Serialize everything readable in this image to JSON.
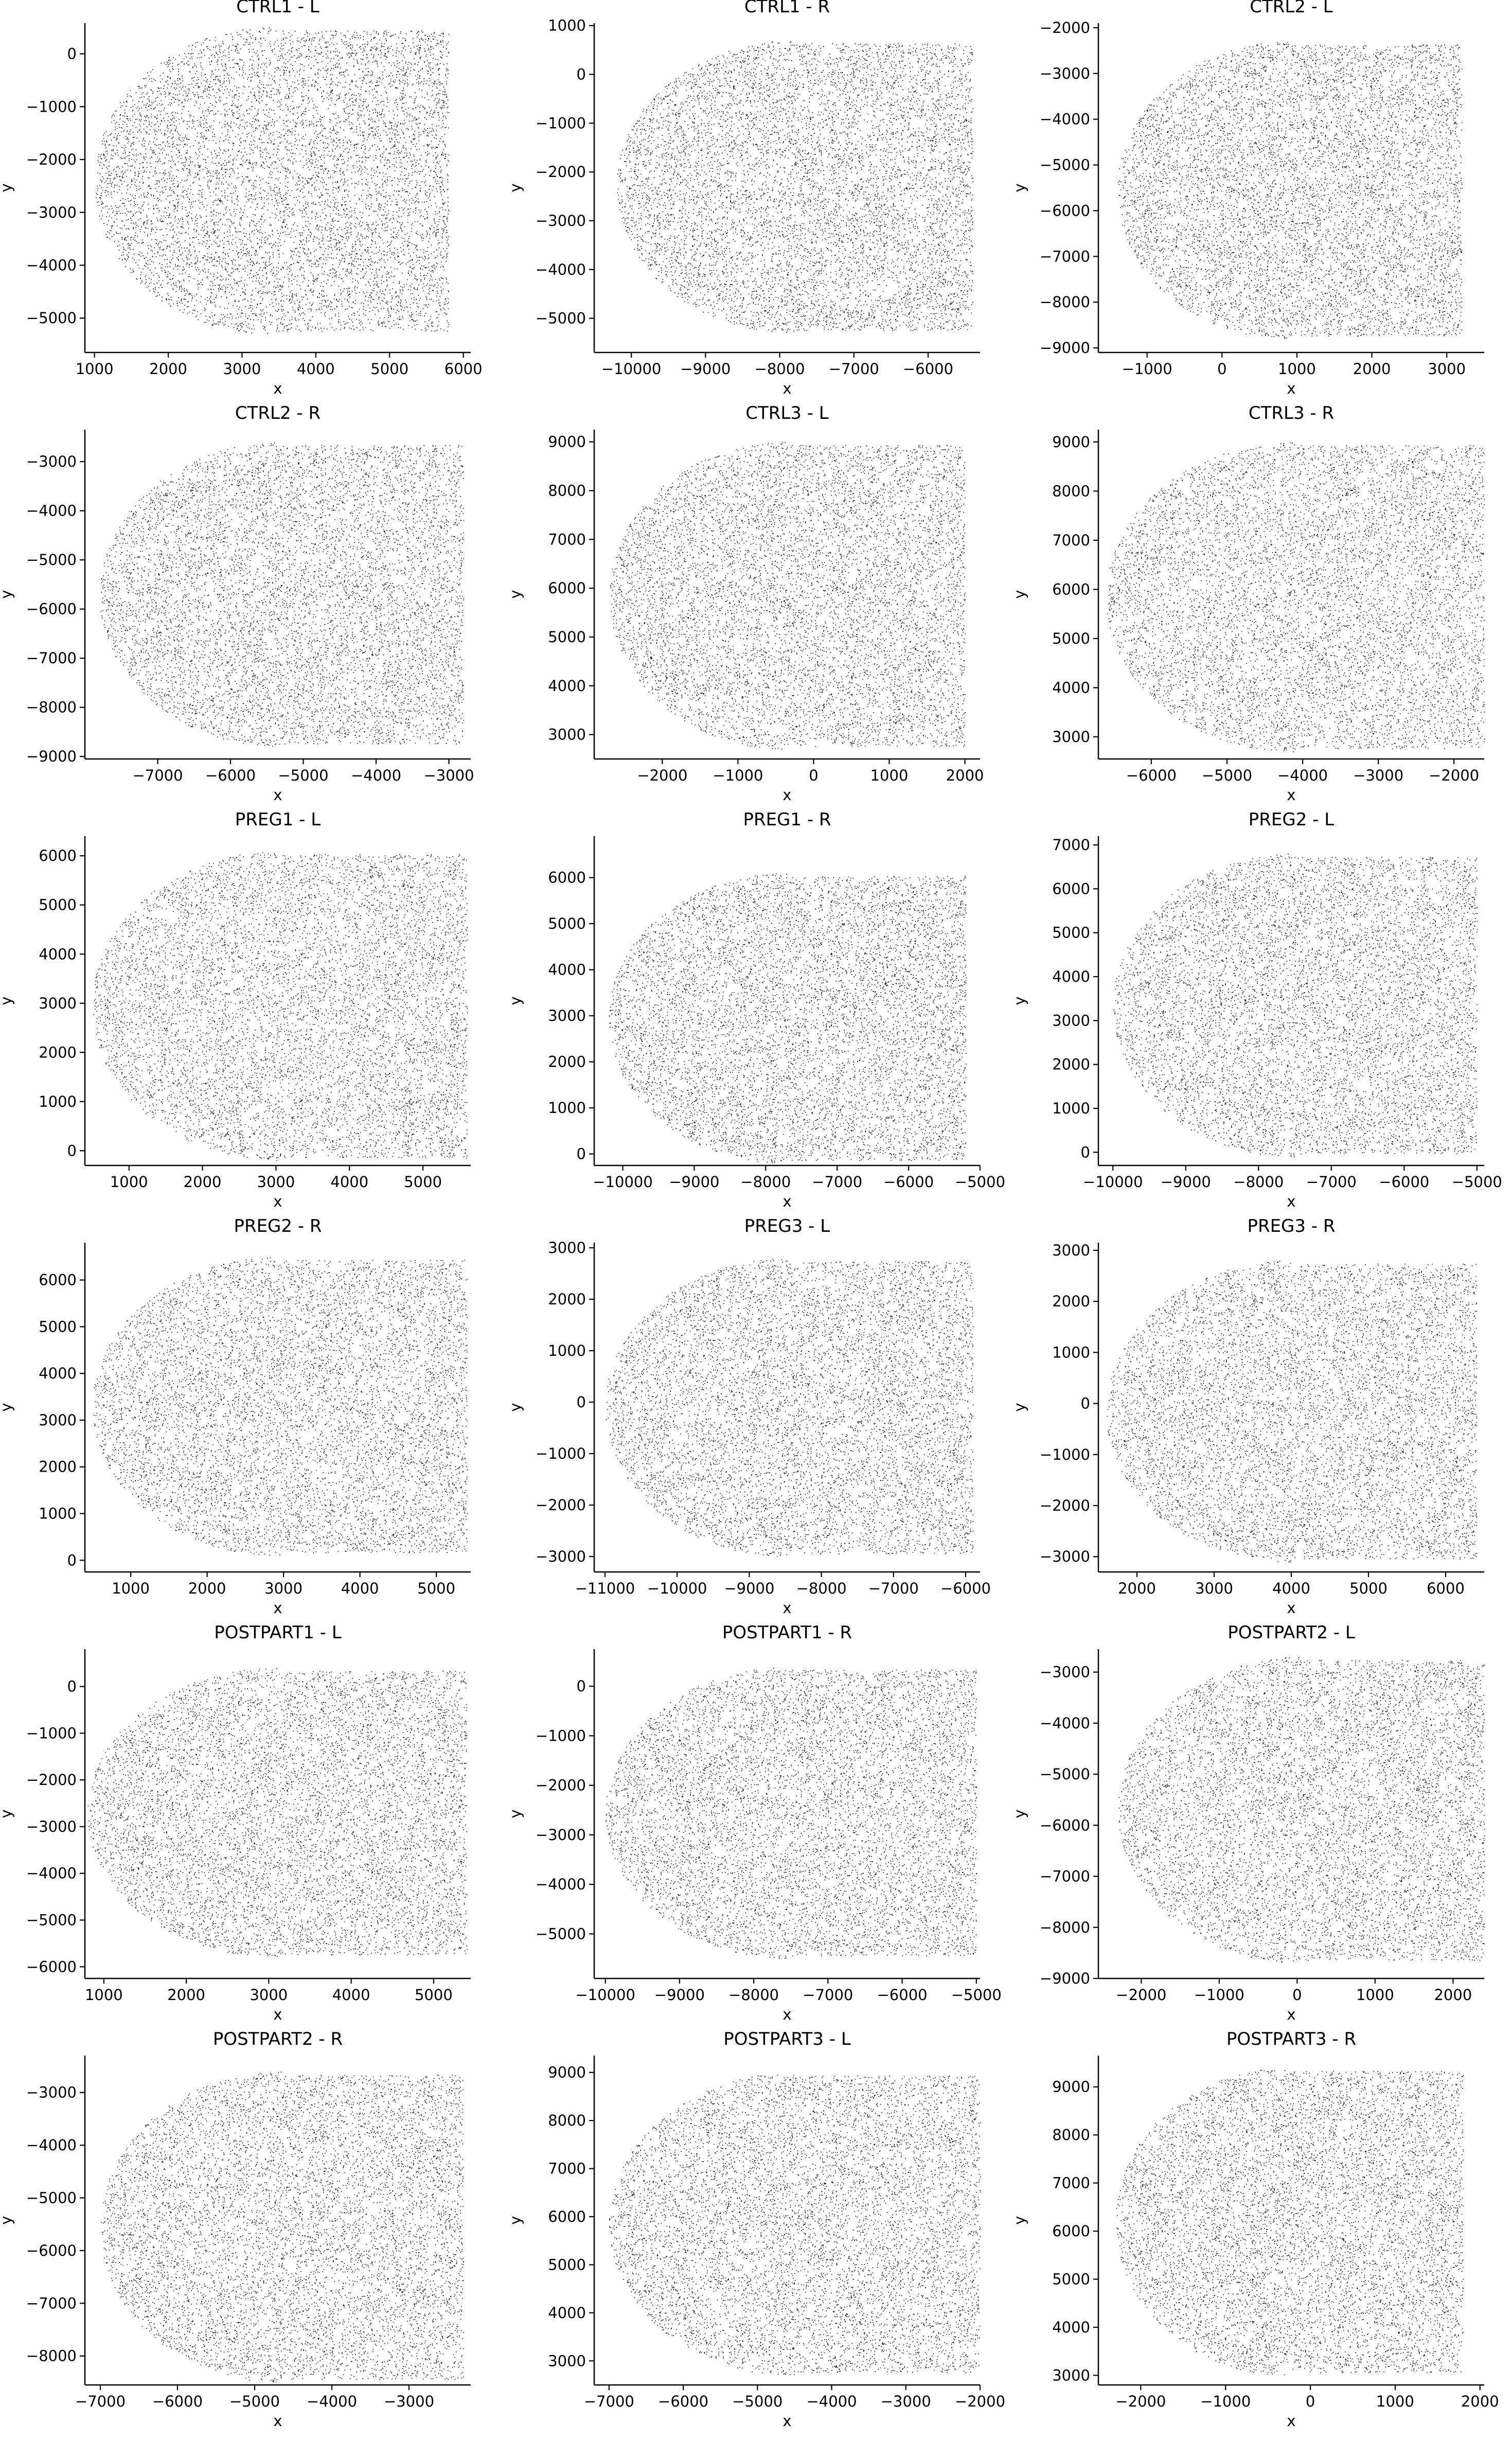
{
  "chart_data": [
    {
      "type": "scatter",
      "title": "CTRL1 - L",
      "xlabel": "x",
      "ylabel": "y",
      "xticks": [
        1000,
        2000,
        3000,
        4000,
        5000,
        6000
      ],
      "yticks": [
        0,
        -1000,
        -2000,
        -3000,
        -4000,
        -5000
      ],
      "xlim": [
        870,
        6100
      ],
      "ylim": [
        -5650,
        580
      ],
      "data_extent": {
        "x": [
          1000,
          5800
        ],
        "y": [
          -5300,
          500
        ]
      }
    },
    {
      "type": "scatter",
      "title": "CTRL1 - R",
      "xlabel": "x",
      "ylabel": "y",
      "xticks": [
        -10000,
        -9000,
        -8000,
        -7000,
        -6000
      ],
      "yticks": [
        1000,
        0,
        -1000,
        -2000,
        -3000,
        -4000,
        -5000
      ],
      "xlim": [
        -10500,
        -5300
      ],
      "ylim": [
        -5700,
        1050
      ],
      "data_extent": {
        "x": [
          -10200,
          -5400
        ],
        "y": [
          -5300,
          700
        ]
      }
    },
    {
      "type": "scatter",
      "title": "CTRL2 - L",
      "xlabel": "x",
      "ylabel": "y",
      "xticks": [
        -1000,
        0,
        1000,
        2000,
        3000
      ],
      "yticks": [
        -2000,
        -3000,
        -4000,
        -5000,
        -6000,
        -7000,
        -8000,
        -9000
      ],
      "xlim": [
        -1650,
        3500
      ],
      "ylim": [
        -9100,
        -1900
      ],
      "data_extent": {
        "x": [
          -1400,
          3200
        ],
        "y": [
          -8800,
          -2300
        ]
      }
    },
    {
      "type": "scatter",
      "title": "CTRL2 - R",
      "xlabel": "x",
      "ylabel": "y",
      "xticks": [
        -7000,
        -6000,
        -5000,
        -4000,
        -3000
      ],
      "yticks": [
        -3000,
        -4000,
        -5000,
        -6000,
        -7000,
        -8000,
        -9000
      ],
      "xlim": [
        -8000,
        -2700
      ],
      "ylim": [
        -9050,
        -2350
      ],
      "data_extent": {
        "x": [
          -7800,
          -2800
        ],
        "y": [
          -8800,
          -2600
        ]
      }
    },
    {
      "type": "scatter",
      "title": "CTRL3 - L",
      "xlabel": "x",
      "ylabel": "y",
      "xticks": [
        -2000,
        -1000,
        0,
        1000,
        2000
      ],
      "yticks": [
        9000,
        8000,
        7000,
        6000,
        5000,
        4000,
        3000
      ],
      "xlim": [
        -2900,
        2200
      ],
      "ylim": [
        2500,
        9250
      ],
      "data_extent": {
        "x": [
          -2700,
          2000
        ],
        "y": [
          2700,
          9000
        ]
      }
    },
    {
      "type": "scatter",
      "title": "CTRL3 - R",
      "xlabel": "x",
      "ylabel": "y",
      "xticks": [
        -6000,
        -5000,
        -4000,
        -3000,
        -2000
      ],
      "yticks": [
        9000,
        8000,
        7000,
        6000,
        5000,
        4000,
        3000
      ],
      "xlim": [
        -6700,
        -1600
      ],
      "ylim": [
        2550,
        9250
      ],
      "data_extent": {
        "x": [
          -6600,
          -1600
        ],
        "y": [
          2700,
          9000
        ]
      }
    },
    {
      "type": "scatter",
      "title": "PREG1 - L",
      "xlabel": "x",
      "ylabel": "y",
      "xticks": [
        1000,
        2000,
        3000,
        4000,
        5000
      ],
      "yticks": [
        6000,
        5000,
        4000,
        3000,
        2000,
        1000,
        0
      ],
      "xlim": [
        400,
        5650
      ],
      "ylim": [
        -300,
        6400
      ],
      "data_extent": {
        "x": [
          500,
          5600
        ],
        "y": [
          -200,
          6100
        ]
      }
    },
    {
      "type": "scatter",
      "title": "PREG1 - R",
      "xlabel": "x",
      "ylabel": "y",
      "xticks": [
        -10000,
        -9000,
        -8000,
        -7000,
        -6000,
        -5000
      ],
      "yticks": [
        6000,
        5000,
        4000,
        3000,
        2000,
        1000,
        0
      ],
      "xlim": [
        -10400,
        -5000
      ],
      "ylim": [
        -250,
        6900
      ],
      "data_extent": {
        "x": [
          -10200,
          -5200
        ],
        "y": [
          -200,
          6100
        ]
      }
    },
    {
      "type": "scatter",
      "title": "PREG2 - L",
      "xlabel": "x",
      "ylabel": "y",
      "xticks": [
        -10000,
        -9000,
        -8000,
        -7000,
        -6000,
        -5000
      ],
      "yticks": [
        7000,
        6000,
        5000,
        4000,
        3000,
        2000,
        1000,
        0
      ],
      "xlim": [
        -10200,
        -4900
      ],
      "ylim": [
        -300,
        7200
      ],
      "data_extent": {
        "x": [
          -10000,
          -5000
        ],
        "y": [
          -100,
          6800
        ]
      }
    },
    {
      "type": "scatter",
      "title": "PREG2 - R",
      "xlabel": "x",
      "ylabel": "y",
      "xticks": [
        1000,
        2000,
        3000,
        4000,
        5000
      ],
      "yticks": [
        6000,
        5000,
        4000,
        3000,
        2000,
        1000,
        0
      ],
      "xlim": [
        400,
        5450
      ],
      "ylim": [
        -250,
        6800
      ],
      "data_extent": {
        "x": [
          500,
          5400
        ],
        "y": [
          100,
          6500
        ]
      }
    },
    {
      "type": "scatter",
      "title": "PREG3 - L",
      "xlabel": "x",
      "ylabel": "y",
      "xticks": [
        -11000,
        -10000,
        -9000,
        -8000,
        -7000,
        -6000
      ],
      "yticks": [
        3000,
        2000,
        1000,
        0,
        -1000,
        -2000,
        -3000
      ],
      "xlim": [
        -11150,
        -5800
      ],
      "ylim": [
        -3300,
        3100
      ],
      "data_extent": {
        "x": [
          -11000,
          -5900
        ],
        "y": [
          -3000,
          2800
        ]
      }
    },
    {
      "type": "scatter",
      "title": "PREG3 - R",
      "xlabel": "x",
      "ylabel": "y",
      "xticks": [
        2000,
        3000,
        4000,
        5000,
        6000
      ],
      "yticks": [
        3000,
        2000,
        1000,
        0,
        -1000,
        -2000,
        -3000
      ],
      "xlim": [
        1500,
        6500
      ],
      "ylim": [
        -3300,
        3150
      ],
      "data_extent": {
        "x": [
          1600,
          6400
        ],
        "y": [
          -3100,
          2800
        ]
      }
    },
    {
      "type": "scatter",
      "title": "POSTPART1 - L",
      "xlabel": "x",
      "ylabel": "y",
      "xticks": [
        1000,
        2000,
        3000,
        4000,
        5000
      ],
      "yticks": [
        0,
        -1000,
        -2000,
        -3000,
        -4000,
        -5000,
        -6000
      ],
      "xlim": [
        770,
        5450
      ],
      "ylim": [
        -6250,
        800
      ],
      "data_extent": {
        "x": [
          800,
          5400
        ],
        "y": [
          -5800,
          400
        ]
      }
    },
    {
      "type": "scatter",
      "title": "POSTPART1 - R",
      "xlabel": "x",
      "ylabel": "y",
      "xticks": [
        -10000,
        -9000,
        -8000,
        -7000,
        -6000,
        -5000
      ],
      "yticks": [
        0,
        -1000,
        -2000,
        -3000,
        -4000,
        -5000
      ],
      "xlim": [
        -10150,
        -4950
      ],
      "ylim": [
        -5900,
        750
      ],
      "data_extent": {
        "x": [
          -10000,
          -5000
        ],
        "y": [
          -5500,
          400
        ]
      }
    },
    {
      "type": "scatter",
      "title": "POSTPART2 - L",
      "xlabel": "x",
      "ylabel": "y",
      "xticks": [
        -2000,
        -1000,
        0,
        1000,
        2000
      ],
      "yticks": [
        -3000,
        -4000,
        -5000,
        -6000,
        -7000,
        -8000,
        -9000
      ],
      "xlim": [
        -2550,
        2400
      ],
      "ylim": [
        -9000,
        -2550
      ],
      "data_extent": {
        "x": [
          -2300,
          2400
        ],
        "y": [
          -8700,
          -2700
        ]
      }
    },
    {
      "type": "scatter",
      "title": "POSTPART2 - R",
      "xlabel": "x",
      "ylabel": "y",
      "xticks": [
        -7000,
        -6000,
        -5000,
        -4000,
        -3000
      ],
      "yticks": [
        -3000,
        -4000,
        -5000,
        -6000,
        -7000,
        -8000
      ],
      "xlim": [
        -7200,
        -2200
      ],
      "ylim": [
        -8550,
        -2300
      ],
      "data_extent": {
        "x": [
          -7000,
          -2300
        ],
        "y": [
          -8500,
          -2600
        ]
      }
    },
    {
      "type": "scatter",
      "title": "POSTPART3 - L",
      "xlabel": "x",
      "ylabel": "y",
      "xticks": [
        -7000,
        -6000,
        -5000,
        -4000,
        -3000,
        -2000
      ],
      "yticks": [
        9000,
        8000,
        7000,
        6000,
        5000,
        4000,
        3000
      ],
      "xlim": [
        -7200,
        -2000
      ],
      "ylim": [
        2500,
        9350
      ],
      "data_extent": {
        "x": [
          -7000,
          -2000
        ],
        "y": [
          2700,
          9000
        ]
      }
    },
    {
      "type": "scatter",
      "title": "POSTPART3 - R",
      "xlabel": "x",
      "ylabel": "y",
      "xticks": [
        -2000,
        -1000,
        0,
        1000,
        2000
      ],
      "yticks": [
        9000,
        8000,
        7000,
        6000,
        5000,
        4000,
        3000
      ],
      "xlim": [
        -2500,
        2050
      ],
      "ylim": [
        2800,
        9650
      ],
      "data_extent": {
        "x": [
          -2300,
          1800
        ],
        "y": [
          3000,
          9400
        ]
      }
    }
  ],
  "style": {
    "point_color": "#000000",
    "axis_color": "#000000",
    "background": "#ffffff"
  }
}
